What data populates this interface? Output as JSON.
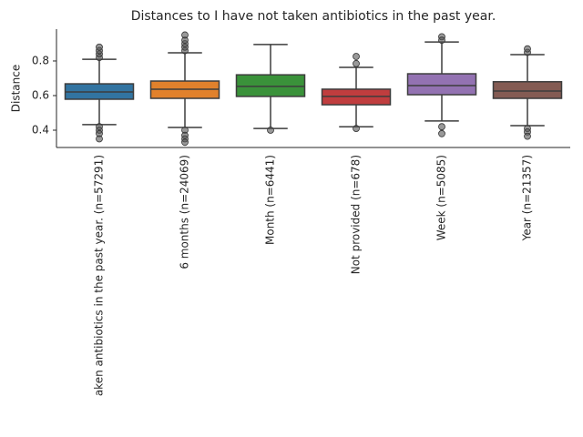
{
  "chart_data": {
    "type": "box",
    "title": "Distances to I have not taken antibiotics in the past year.",
    "ylabel": "Distance",
    "categories": [
      "aken antibiotics in the past year. (n=57291)",
      "6 months (n=24069)",
      "Month (n=6441)",
      "Not provided (n=678)",
      "Week (n=5085)",
      "Year (n=21357)"
    ],
    "series": [
      {
        "name": "I have not taken antibiotics in the past year.",
        "color": "#3274a1",
        "whisker_low": 0.432,
        "q1": 0.579,
        "median": 0.621,
        "q3": 0.668,
        "whisker_high": 0.81,
        "outliers": [
          0.82,
          0.84,
          0.86,
          0.88,
          0.42,
          0.4,
          0.38,
          0.35
        ]
      },
      {
        "name": "6 months",
        "color": "#e1812c",
        "whisker_low": 0.416,
        "q1": 0.584,
        "median": 0.637,
        "q3": 0.684,
        "whisker_high": 0.847,
        "outliers": [
          0.86,
          0.88,
          0.9,
          0.92,
          0.95,
          0.4,
          0.37,
          0.35,
          0.33
        ]
      },
      {
        "name": "Month",
        "color": "#3a923a",
        "whisker_low": 0.41,
        "q1": 0.595,
        "median": 0.653,
        "q3": 0.72,
        "whisker_high": 0.895,
        "outliers": [
          0.4
        ]
      },
      {
        "name": "Not provided",
        "color": "#c03d3e",
        "whisker_low": 0.42,
        "q1": 0.547,
        "median": 0.595,
        "q3": 0.637,
        "whisker_high": 0.763,
        "outliers": [
          0.826,
          0.785,
          0.41
        ]
      },
      {
        "name": "Week",
        "color": "#9372b2",
        "whisker_low": 0.453,
        "q1": 0.605,
        "median": 0.658,
        "q3": 0.726,
        "whisker_high": 0.91,
        "outliers": [
          0.94,
          0.92,
          0.42,
          0.38
        ]
      },
      {
        "name": "Year",
        "color": "#845b53",
        "whisker_low": 0.426,
        "q1": 0.584,
        "median": 0.626,
        "q3": 0.68,
        "whisker_high": 0.837,
        "outliers": [
          0.85,
          0.87,
          0.41,
          0.39,
          0.365
        ]
      }
    ],
    "ylim": [
      0.3,
      0.984
    ],
    "yticks": [
      0.4,
      0.6,
      0.8
    ]
  }
}
